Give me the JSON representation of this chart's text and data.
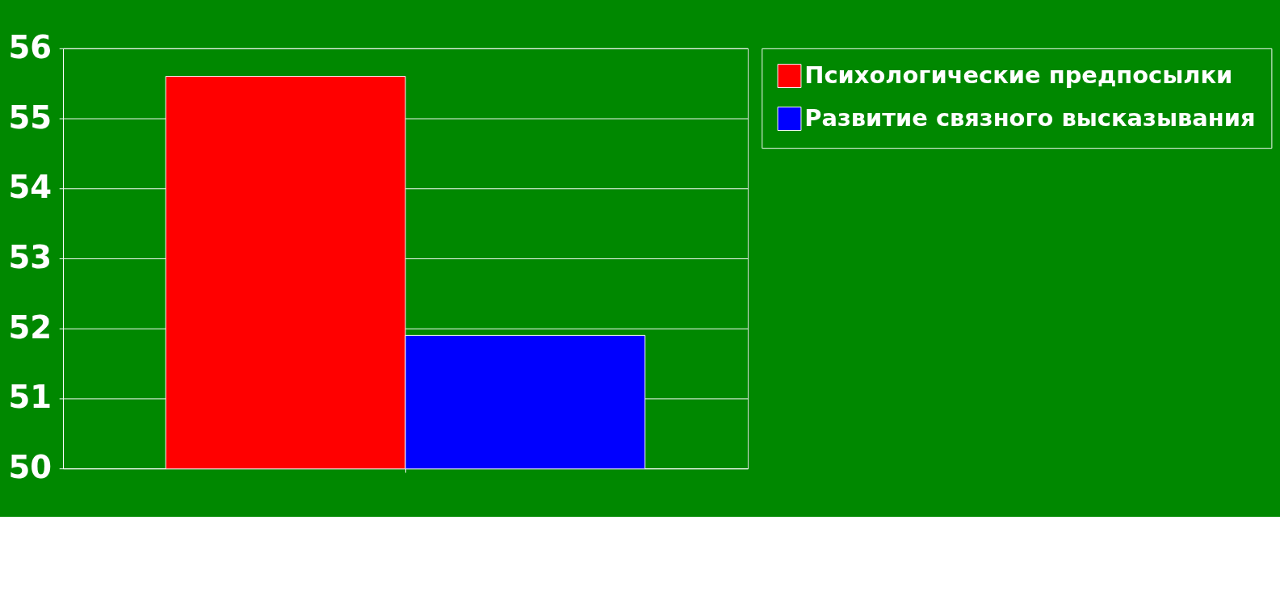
{
  "chart_data": {
    "type": "bar",
    "categories": [
      null
    ],
    "series": [
      {
        "name": "Психологические предпосылки",
        "color": "#ff0000",
        "values": [
          55.6
        ]
      },
      {
        "name": "Развитие связного высказывания",
        "color": "#0000ff",
        "values": [
          51.9
        ]
      }
    ],
    "ylim": [
      50,
      56
    ],
    "yticks": [
      50,
      51,
      52,
      53,
      54,
      55,
      56
    ],
    "grid": "y",
    "legend": "right"
  }
}
